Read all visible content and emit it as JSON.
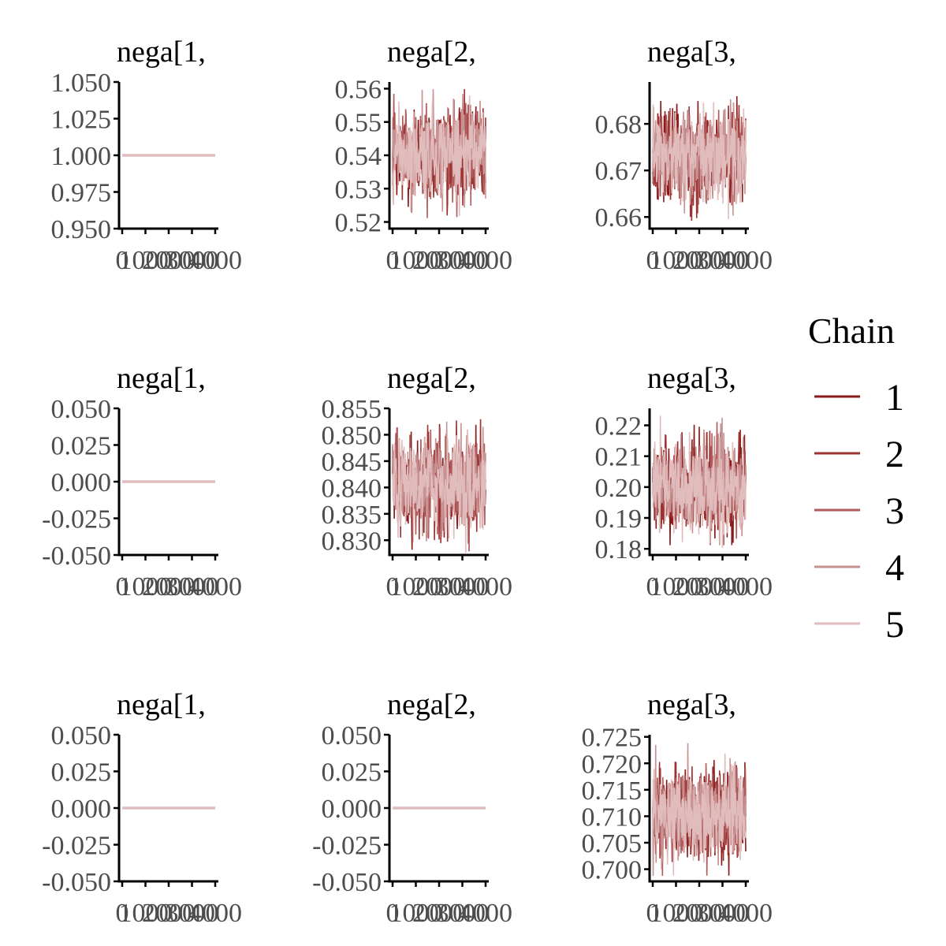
{
  "chart_data": {
    "type": "line",
    "legend": {
      "title": "Chain",
      "placement": "right",
      "entries": [
        {
          "label": "1",
          "color": "#8b1a1a"
        },
        {
          "label": "2",
          "color": "#9c3333"
        },
        {
          "label": "3",
          "color": "#b05a5a"
        },
        {
          "label": "4",
          "color": "#c99292"
        },
        {
          "label": "5",
          "color": "#e0bcbc"
        }
      ]
    },
    "xticks": [
      "0",
      "1000",
      "2000",
      "3000",
      "4000"
    ],
    "xlim": [
      0,
      4000
    ],
    "panels": [
      {
        "title": "nega[1,",
        "ylim": [
          0.95,
          1.05
        ],
        "yticks": [
          "0.950",
          "0.975",
          "1.000",
          "1.025",
          "1.050"
        ],
        "mean": 1.0,
        "lo": 1.0,
        "hi": 1.0,
        "constant": true
      },
      {
        "title": "nega[2,",
        "ylim": [
          0.518,
          0.562
        ],
        "yticks": [
          "0.52",
          "0.53",
          "0.54",
          "0.55",
          "0.56"
        ],
        "mean": 0.541,
        "lo": 0.521,
        "hi": 0.56,
        "constant": false
      },
      {
        "title": "nega[3,",
        "ylim": [
          0.6575,
          0.689
        ],
        "yticks": [
          "0.66",
          "0.67",
          "0.68"
        ],
        "mean": 0.673,
        "lo": 0.659,
        "hi": 0.688,
        "constant": false
      },
      {
        "title": "nega[1,",
        "ylim": [
          -0.05,
          0.05
        ],
        "yticks": [
          "-0.050",
          "-0.025",
          "0.000",
          "0.025",
          "0.050"
        ],
        "mean": 0.0,
        "lo": 0.0,
        "hi": 0.0,
        "constant": true
      },
      {
        "title": "nega[2,",
        "ylim": [
          0.8272,
          0.855
        ],
        "yticks": [
          "0.830",
          "0.835",
          "0.840",
          "0.845",
          "0.850",
          "0.855"
        ],
        "mean": 0.8405,
        "lo": 0.8275,
        "hi": 0.8535,
        "constant": false
      },
      {
        "title": "nega[3,",
        "ylim": [
          0.178,
          0.2255
        ],
        "yticks": [
          "0.18",
          "0.19",
          "0.20",
          "0.21",
          "0.22"
        ],
        "mean": 0.2,
        "lo": 0.18,
        "hi": 0.224,
        "constant": false
      },
      {
        "title": "nega[1,",
        "ylim": [
          -0.05,
          0.05
        ],
        "yticks": [
          "-0.050",
          "-0.025",
          "0.000",
          "0.025",
          "0.050"
        ],
        "mean": 0.0,
        "lo": 0.0,
        "hi": 0.0,
        "constant": true
      },
      {
        "title": "nega[2,",
        "ylim": [
          -0.05,
          0.05
        ],
        "yticks": [
          "-0.050",
          "-0.025",
          "0.000",
          "0.025",
          "0.050"
        ],
        "mean": 0.0,
        "lo": 0.0,
        "hi": 0.0,
        "constant": true
      },
      {
        "title": "nega[3,",
        "ylim": [
          0.6977,
          0.7254
        ],
        "yticks": [
          "0.700",
          "0.705",
          "0.710",
          "0.715",
          "0.720",
          "0.725"
        ],
        "mean": 0.7105,
        "lo": 0.6985,
        "hi": 0.7238,
        "constant": false
      }
    ]
  }
}
